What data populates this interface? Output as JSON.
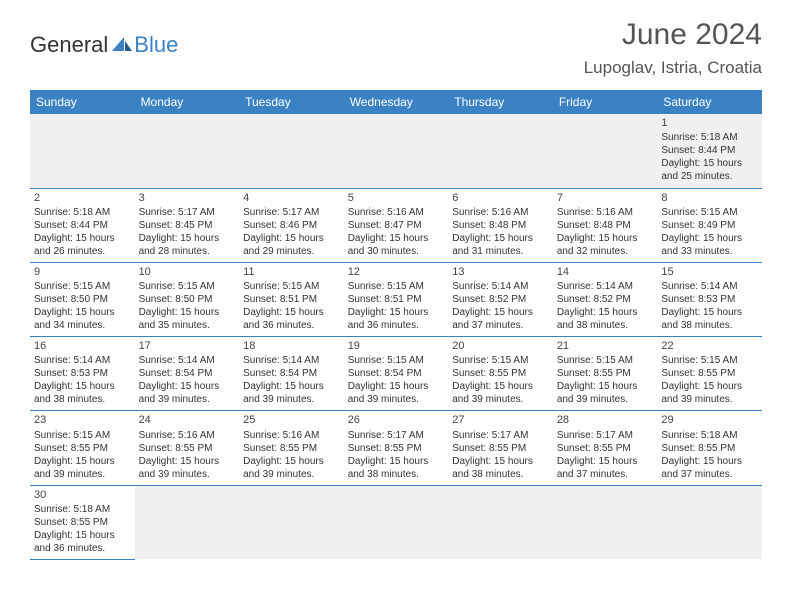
{
  "brand": {
    "part1": "General",
    "part2": "Blue"
  },
  "title": "June 2024",
  "location": "Lupoglav, Istria, Croatia",
  "colors": {
    "header_bg": "#3b82c4",
    "header_text": "#ffffff",
    "grid_line": "#3b82c4",
    "empty_bg": "#f0f0f0",
    "text": "#333333",
    "title_text": "#555555"
  },
  "dayHeaders": [
    "Sunday",
    "Monday",
    "Tuesday",
    "Wednesday",
    "Thursday",
    "Friday",
    "Saturday"
  ],
  "weeks": [
    [
      null,
      null,
      null,
      null,
      null,
      null,
      {
        "n": "1",
        "sr": "5:18 AM",
        "ss": "8:44 PM",
        "dl": "15 hours and 25 minutes."
      }
    ],
    [
      {
        "n": "2",
        "sr": "5:18 AM",
        "ss": "8:44 PM",
        "dl": "15 hours and 26 minutes."
      },
      {
        "n": "3",
        "sr": "5:17 AM",
        "ss": "8:45 PM",
        "dl": "15 hours and 28 minutes."
      },
      {
        "n": "4",
        "sr": "5:17 AM",
        "ss": "8:46 PM",
        "dl": "15 hours and 29 minutes."
      },
      {
        "n": "5",
        "sr": "5:16 AM",
        "ss": "8:47 PM",
        "dl": "15 hours and 30 minutes."
      },
      {
        "n": "6",
        "sr": "5:16 AM",
        "ss": "8:48 PM",
        "dl": "15 hours and 31 minutes."
      },
      {
        "n": "7",
        "sr": "5:16 AM",
        "ss": "8:48 PM",
        "dl": "15 hours and 32 minutes."
      },
      {
        "n": "8",
        "sr": "5:15 AM",
        "ss": "8:49 PM",
        "dl": "15 hours and 33 minutes."
      }
    ],
    [
      {
        "n": "9",
        "sr": "5:15 AM",
        "ss": "8:50 PM",
        "dl": "15 hours and 34 minutes."
      },
      {
        "n": "10",
        "sr": "5:15 AM",
        "ss": "8:50 PM",
        "dl": "15 hours and 35 minutes."
      },
      {
        "n": "11",
        "sr": "5:15 AM",
        "ss": "8:51 PM",
        "dl": "15 hours and 36 minutes."
      },
      {
        "n": "12",
        "sr": "5:15 AM",
        "ss": "8:51 PM",
        "dl": "15 hours and 36 minutes."
      },
      {
        "n": "13",
        "sr": "5:14 AM",
        "ss": "8:52 PM",
        "dl": "15 hours and 37 minutes."
      },
      {
        "n": "14",
        "sr": "5:14 AM",
        "ss": "8:52 PM",
        "dl": "15 hours and 38 minutes."
      },
      {
        "n": "15",
        "sr": "5:14 AM",
        "ss": "8:53 PM",
        "dl": "15 hours and 38 minutes."
      }
    ],
    [
      {
        "n": "16",
        "sr": "5:14 AM",
        "ss": "8:53 PM",
        "dl": "15 hours and 38 minutes."
      },
      {
        "n": "17",
        "sr": "5:14 AM",
        "ss": "8:54 PM",
        "dl": "15 hours and 39 minutes."
      },
      {
        "n": "18",
        "sr": "5:14 AM",
        "ss": "8:54 PM",
        "dl": "15 hours and 39 minutes."
      },
      {
        "n": "19",
        "sr": "5:15 AM",
        "ss": "8:54 PM",
        "dl": "15 hours and 39 minutes."
      },
      {
        "n": "20",
        "sr": "5:15 AM",
        "ss": "8:55 PM",
        "dl": "15 hours and 39 minutes."
      },
      {
        "n": "21",
        "sr": "5:15 AM",
        "ss": "8:55 PM",
        "dl": "15 hours and 39 minutes."
      },
      {
        "n": "22",
        "sr": "5:15 AM",
        "ss": "8:55 PM",
        "dl": "15 hours and 39 minutes."
      }
    ],
    [
      {
        "n": "23",
        "sr": "5:15 AM",
        "ss": "8:55 PM",
        "dl": "15 hours and 39 minutes."
      },
      {
        "n": "24",
        "sr": "5:16 AM",
        "ss": "8:55 PM",
        "dl": "15 hours and 39 minutes."
      },
      {
        "n": "25",
        "sr": "5:16 AM",
        "ss": "8:55 PM",
        "dl": "15 hours and 39 minutes."
      },
      {
        "n": "26",
        "sr": "5:17 AM",
        "ss": "8:55 PM",
        "dl": "15 hours and 38 minutes."
      },
      {
        "n": "27",
        "sr": "5:17 AM",
        "ss": "8:55 PM",
        "dl": "15 hours and 38 minutes."
      },
      {
        "n": "28",
        "sr": "5:17 AM",
        "ss": "8:55 PM",
        "dl": "15 hours and 37 minutes."
      },
      {
        "n": "29",
        "sr": "5:18 AM",
        "ss": "8:55 PM",
        "dl": "15 hours and 37 minutes."
      }
    ],
    [
      {
        "n": "30",
        "sr": "5:18 AM",
        "ss": "8:55 PM",
        "dl": "15 hours and 36 minutes."
      },
      null,
      null,
      null,
      null,
      null,
      null
    ]
  ],
  "labels": {
    "sunrise": "Sunrise:",
    "sunset": "Sunset:",
    "daylight": "Daylight:"
  }
}
